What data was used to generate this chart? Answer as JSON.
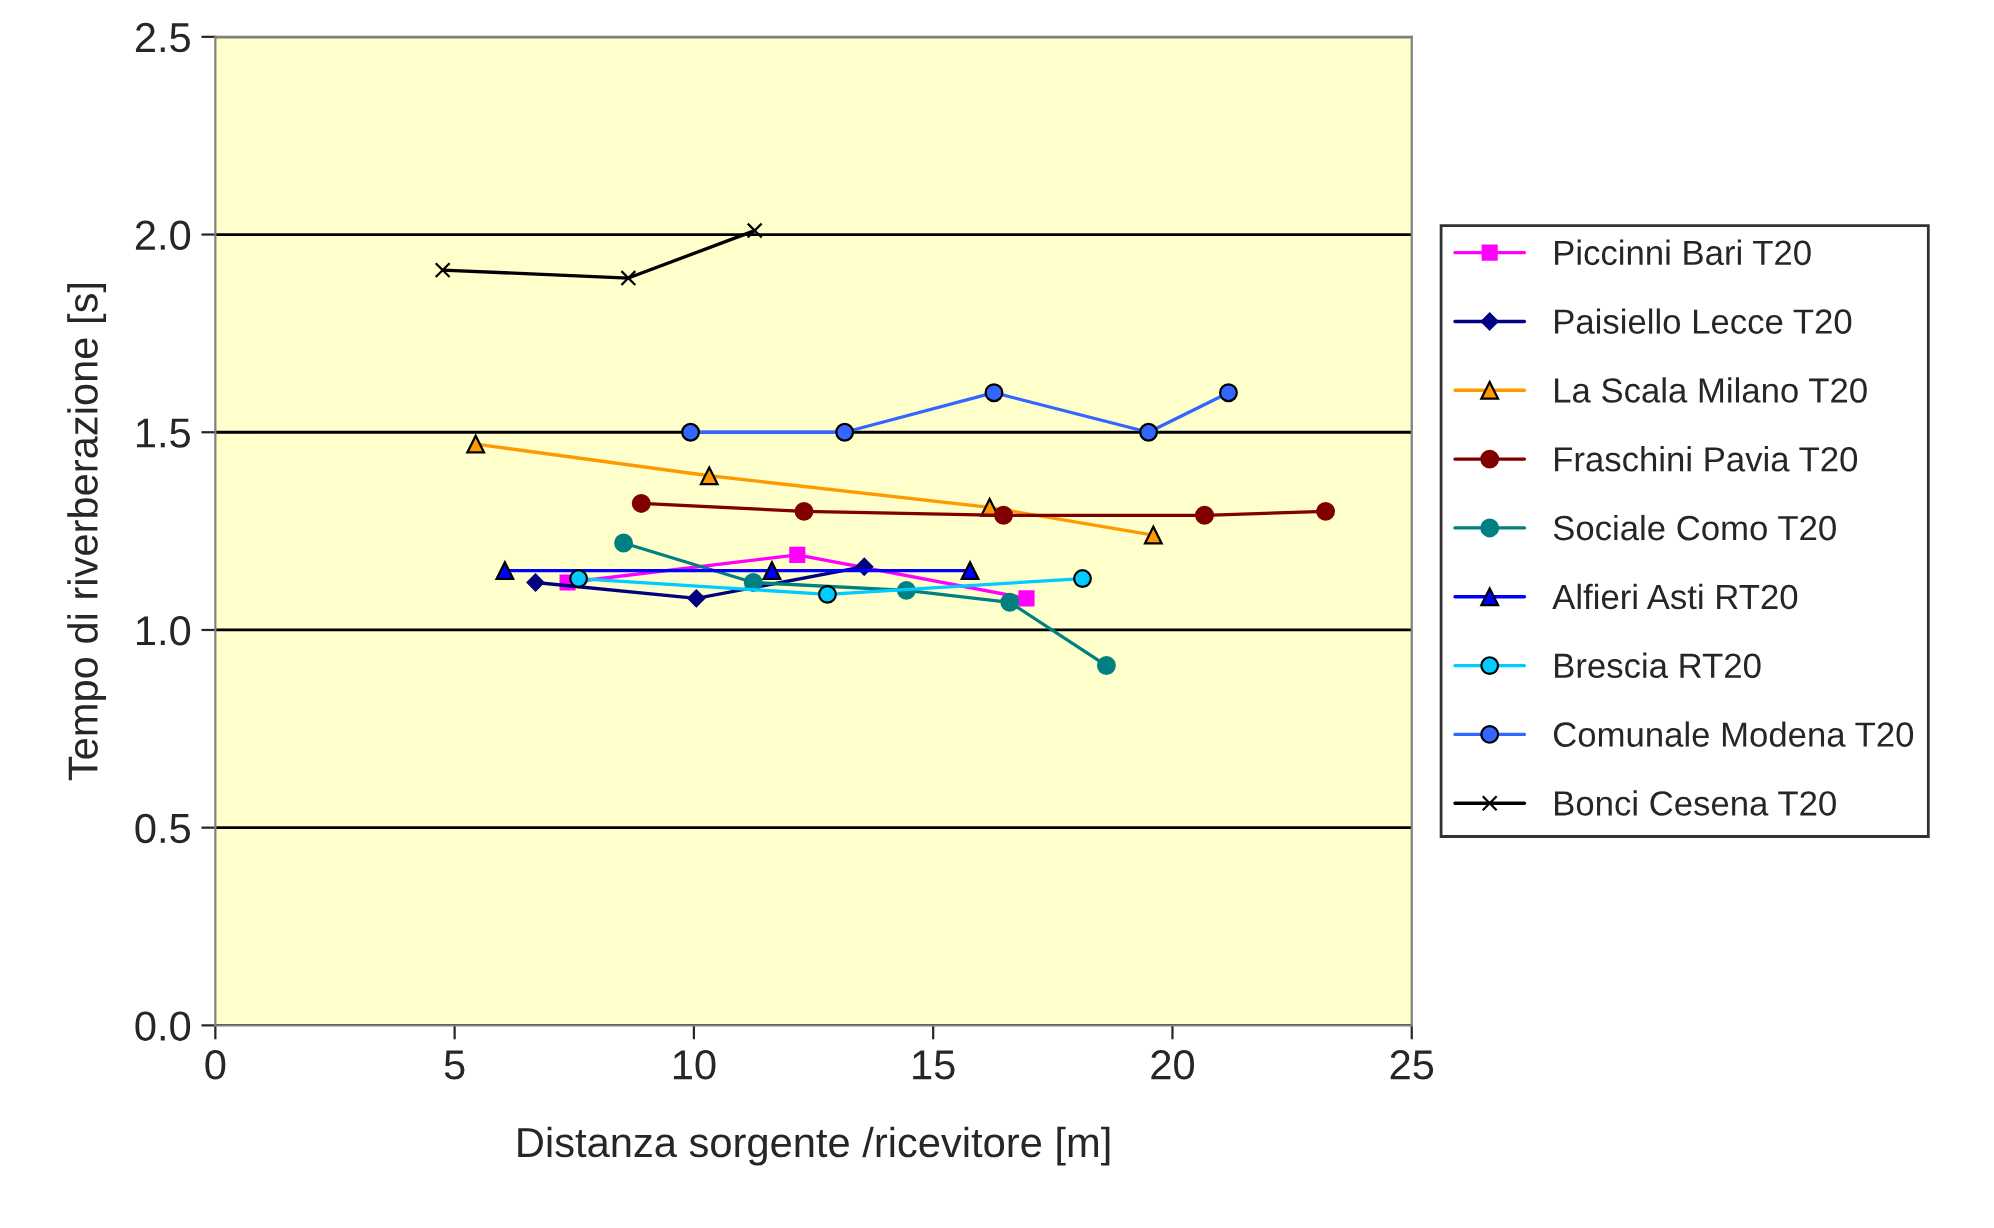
{
  "chart_data": {
    "type": "line",
    "xlabel": "Distanza sorgente /ricevitore [m]",
    "ylabel": "Tempo di riverberazione [s]",
    "xlim": [
      0,
      25
    ],
    "xticks": [
      0,
      5,
      10,
      15,
      20,
      25
    ],
    "ylim": [
      0,
      2.5
    ],
    "yticks": [
      {
        "value": 0,
        "label": "0.0"
      },
      {
        "value": 0.5,
        "label": "0.5"
      },
      {
        "value": 1,
        "label": "1.0"
      },
      {
        "value": 1.5,
        "label": "1.5"
      },
      {
        "value": 2,
        "label": "2.0"
      },
      {
        "value": 2.5,
        "label": "2.5"
      }
    ],
    "grid": "y",
    "legend": "right",
    "series": [
      {
        "name": "Piccinni Bari T20",
        "color": "#ff00ff",
        "marker": "square",
        "x": [
          7.36,
          12.16,
          16.95
        ],
        "values": [
          1.12,
          1.19,
          1.08
        ]
      },
      {
        "name": "Paisiello Lecce T20",
        "color": "#000080",
        "marker": "diamond",
        "x": [
          6.69,
          10.05,
          13.56
        ],
        "values": [
          1.12,
          1.08,
          1.16
        ]
      },
      {
        "name": "La Scala Milano T20",
        "color": "#ff9900",
        "marker": "triangle",
        "x": [
          5.44,
          10.32,
          16.18,
          19.6
        ],
        "values": [
          1.47,
          1.39,
          1.31,
          1.24
        ]
      },
      {
        "name": "Fraschini Pavia T20",
        "color": "#800000",
        "marker": "circle",
        "x": [
          8.9,
          12.3,
          16.47,
          20.67,
          23.2
        ],
        "values": [
          1.32,
          1.3,
          1.29,
          1.29,
          1.3
        ]
      },
      {
        "name": "Sociale Como T20",
        "color": "#008080",
        "marker": "circle",
        "x": [
          8.53,
          11.24,
          14.44,
          16.6,
          18.62
        ],
        "values": [
          1.22,
          1.12,
          1.1,
          1.07,
          0.91
        ]
      },
      {
        "name": "Alfieri Asti RT20",
        "color": "#0000ff",
        "marker": "triangle",
        "x": [
          6.05,
          11.63,
          15.77
        ],
        "values": [
          1.15,
          1.15,
          1.15
        ]
      },
      {
        "name": "Brescia RT20",
        "color": "#00ccff",
        "marker": "circle",
        "x": [
          7.59,
          12.79,
          18.12
        ],
        "values": [
          1.13,
          1.09,
          1.13
        ]
      },
      {
        "name": "Comunale Modena T20",
        "color": "#3366ff",
        "marker": "circle",
        "x": [
          9.93,
          13.15,
          16.27,
          19.5,
          21.17
        ],
        "values": [
          1.5,
          1.5,
          1.6,
          1.5,
          1.6
        ]
      },
      {
        "name": "Bonci Cesena T20",
        "color": "#000000",
        "marker": "cross",
        "x": [
          4.75,
          8.63,
          11.27
        ],
        "values": [
          1.91,
          1.89,
          2.01
        ]
      }
    ]
  }
}
